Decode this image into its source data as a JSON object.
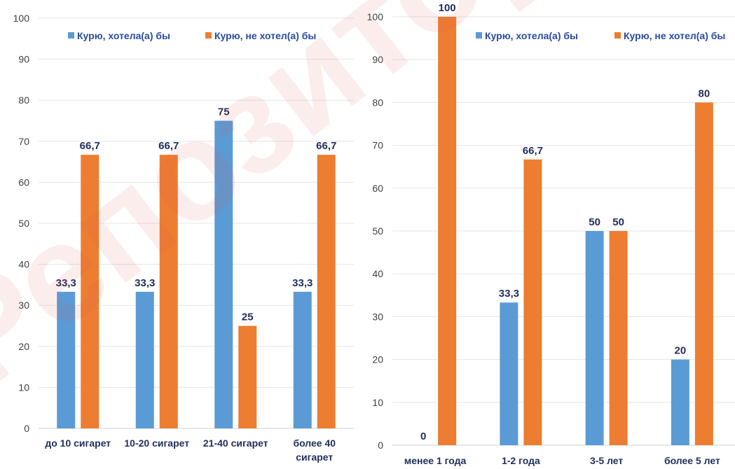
{
  "watermark": "Репозиторий БГУ",
  "colors": {
    "series1": "#5b9bd5",
    "series2": "#ed7d31",
    "label": "#1f2d5a"
  },
  "chart_data": [
    {
      "type": "bar",
      "title": "",
      "xlabel": "",
      "ylabel": "",
      "ylim": [
        0,
        100
      ],
      "yticks": [
        0,
        10,
        20,
        30,
        40,
        50,
        60,
        70,
        80,
        90,
        100
      ],
      "grid": true,
      "legend_position": "top",
      "categories": [
        [
          "до 10 сигарет"
        ],
        [
          "10-20 сигарет"
        ],
        [
          "21-40 сигарет"
        ],
        [
          "более 40",
          "сигарет"
        ]
      ],
      "series": [
        {
          "name": "Курю, хотела(а) бы",
          "values": [
            33.3,
            33.3,
            75,
            33.3
          ],
          "labels": [
            "33,3",
            "33,3",
            "75",
            "33,3"
          ]
        },
        {
          "name": "Курю, не хотел(а) бы",
          "values": [
            66.7,
            66.7,
            25,
            66.7
          ],
          "labels": [
            "66,7",
            "66,7",
            "25",
            "66,7"
          ]
        }
      ]
    },
    {
      "type": "bar",
      "title": "",
      "xlabel": "",
      "ylabel": "",
      "ylim": [
        0,
        100
      ],
      "yticks": [
        0,
        10,
        20,
        30,
        40,
        50,
        60,
        70,
        80,
        90,
        100
      ],
      "grid": true,
      "legend_position": "top",
      "categories": [
        [
          "менее 1 года"
        ],
        [
          "1-2 года"
        ],
        [
          "3-5 лет"
        ],
        [
          "более 5 лет"
        ]
      ],
      "series": [
        {
          "name": "Курю, хотела(а) бы",
          "values": [
            0,
            33.3,
            50,
            20
          ],
          "labels": [
            "0",
            "33,3",
            "50",
            "20"
          ]
        },
        {
          "name": "Курю, не хотел(а) бы",
          "values": [
            100,
            66.7,
            50,
            80
          ],
          "labels": [
            "100",
            "66,7",
            "50",
            "80"
          ]
        }
      ]
    }
  ]
}
